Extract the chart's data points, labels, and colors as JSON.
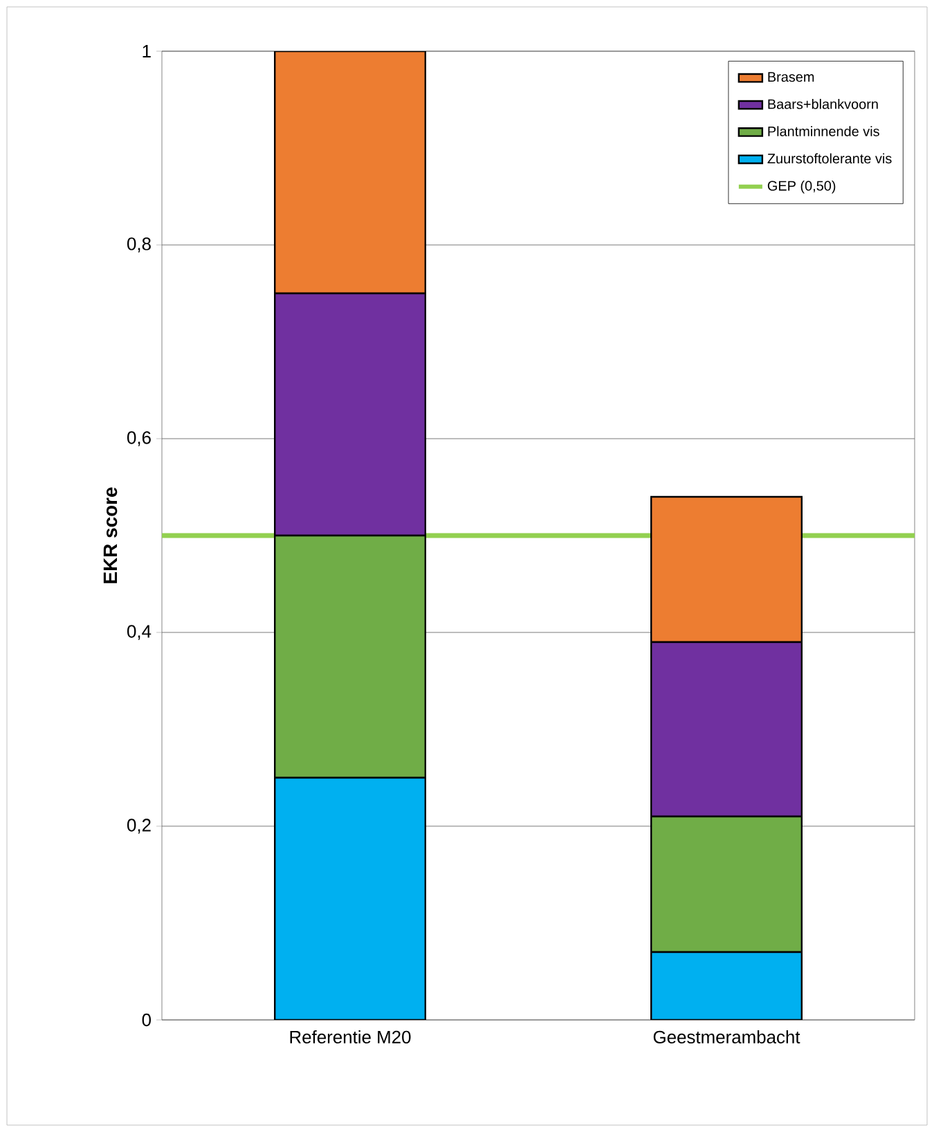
{
  "chart_data": {
    "type": "bar",
    "stacked": true,
    "ylabel": "EKR score",
    "categories": [
      "Referentie M20",
      "Geestmerambacht"
    ],
    "series": [
      {
        "name": "Zuurstoftolerante vis",
        "color": "#00b0f0",
        "values": [
          0.25,
          0.07
        ]
      },
      {
        "name": "Plantminnende vis",
        "color": "#70ad47",
        "values": [
          0.25,
          0.14
        ]
      },
      {
        "name": "Baars+blankvoorn",
        "color": "#7030a0",
        "values": [
          0.25,
          0.18
        ]
      },
      {
        "name": "Brasem",
        "color": "#ed7d31",
        "values": [
          0.25,
          0.15
        ]
      }
    ],
    "ylim": [
      0,
      1
    ],
    "yticks": [
      0,
      {
        "value": 0.2,
        "label": "0,2"
      },
      {
        "value": 0.4,
        "label": "0,4"
      },
      {
        "value": 0.6,
        "label": "0,6"
      },
      {
        "value": 0.8,
        "label": "0,8"
      },
      1
    ],
    "grid": "y",
    "legend": "top right",
    "ref_lines": [
      {
        "axis": "y",
        "value": 0.5,
        "label": "GEP (0,50)",
        "color": "#92d050"
      }
    ]
  }
}
